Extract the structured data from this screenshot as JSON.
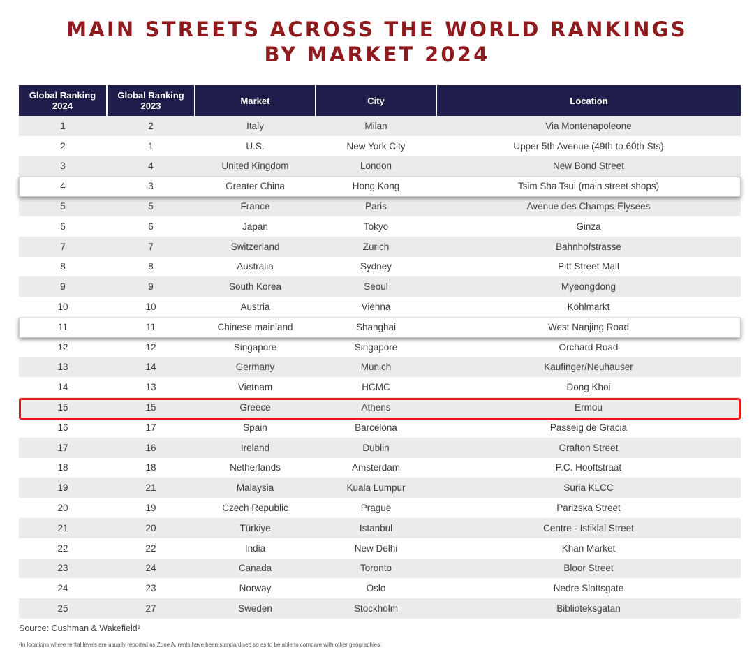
{
  "title": {
    "line1": "MAIN STREETS ACROSS THE WORLD RANKINGS",
    "line2": "BY MARKET 2024"
  },
  "table": {
    "headers": [
      "Global Ranking 2024",
      "Global Ranking 2023",
      "Market",
      "City",
      "Location"
    ],
    "rows": [
      [
        "1",
        "2",
        "Italy",
        "Milan",
        "Via Montenapoleone"
      ],
      [
        "2",
        "1",
        "U.S.",
        "New York City",
        "Upper 5th Avenue (49th to 60th Sts)"
      ],
      [
        "3",
        "4",
        "United Kingdom",
        "London",
        "New Bond Street"
      ],
      [
        "4",
        "3",
        "Greater China",
        "Hong Kong",
        "Tsim Sha Tsui (main street shops)"
      ],
      [
        "5",
        "5",
        "France",
        "Paris",
        "Avenue des Champs-Elysees"
      ],
      [
        "6",
        "6",
        "Japan",
        "Tokyo",
        "Ginza"
      ],
      [
        "7",
        "7",
        "Switzerland",
        "Zurich",
        "Bahnhofstrasse"
      ],
      [
        "8",
        "8",
        "Australia",
        "Sydney",
        "Pitt Street Mall"
      ],
      [
        "9",
        "9",
        "South Korea",
        "Seoul",
        "Myeongdong"
      ],
      [
        "10",
        "10",
        "Austria",
        "Vienna",
        "Kohlmarkt"
      ],
      [
        "11",
        "11",
        "Chinese mainland",
        "Shanghai",
        "West Nanjing Road"
      ],
      [
        "12",
        "12",
        "Singapore",
        "Singapore",
        "Orchard Road"
      ],
      [
        "13",
        "14",
        "Germany",
        "Munich",
        "Kaufinger/Neuhauser"
      ],
      [
        "14",
        "13",
        "Vietnam",
        "HCMC",
        "Dong Khoi"
      ],
      [
        "15",
        "15",
        "Greece",
        "Athens",
        "Ermou"
      ],
      [
        "16",
        "17",
        "Spain",
        "Barcelona",
        "Passeig de Gracia"
      ],
      [
        "17",
        "16",
        "Ireland",
        "Dublin",
        "Grafton Street"
      ],
      [
        "18",
        "18",
        "Netherlands",
        "Amsterdam",
        "P.C. Hooftstraat"
      ],
      [
        "19",
        "21",
        "Malaysia",
        "Kuala Lumpur",
        "Suria KLCC"
      ],
      [
        "20",
        "19",
        "Czech Republic",
        "Prague",
        "Parizska Street"
      ],
      [
        "21",
        "20",
        "Türkiye",
        "Istanbul",
        "Centre - Istiklal Street"
      ],
      [
        "22",
        "22",
        "India",
        "New Delhi",
        "Khan Market"
      ],
      [
        "23",
        "24",
        "Canada",
        "Toronto",
        "Bloor Street"
      ],
      [
        "24",
        "23",
        "Norway",
        "Oslo",
        "Nedre Slottsgate"
      ],
      [
        "25",
        "27",
        "Sweden",
        "Stockholm",
        "Biblioteksgatan"
      ]
    ]
  },
  "source": "Source: Cushman & Wakefield²",
  "footnote": "²In locations where rental levels are usually reported as Zone A, rents have been standardised so as to be able to compare with other geographies.",
  "colors": {
    "title": "#8e1b1e",
    "header_bg": "#1f1d4a",
    "stripe": "#ebebeb",
    "highlight_border": "#e01b1b"
  }
}
